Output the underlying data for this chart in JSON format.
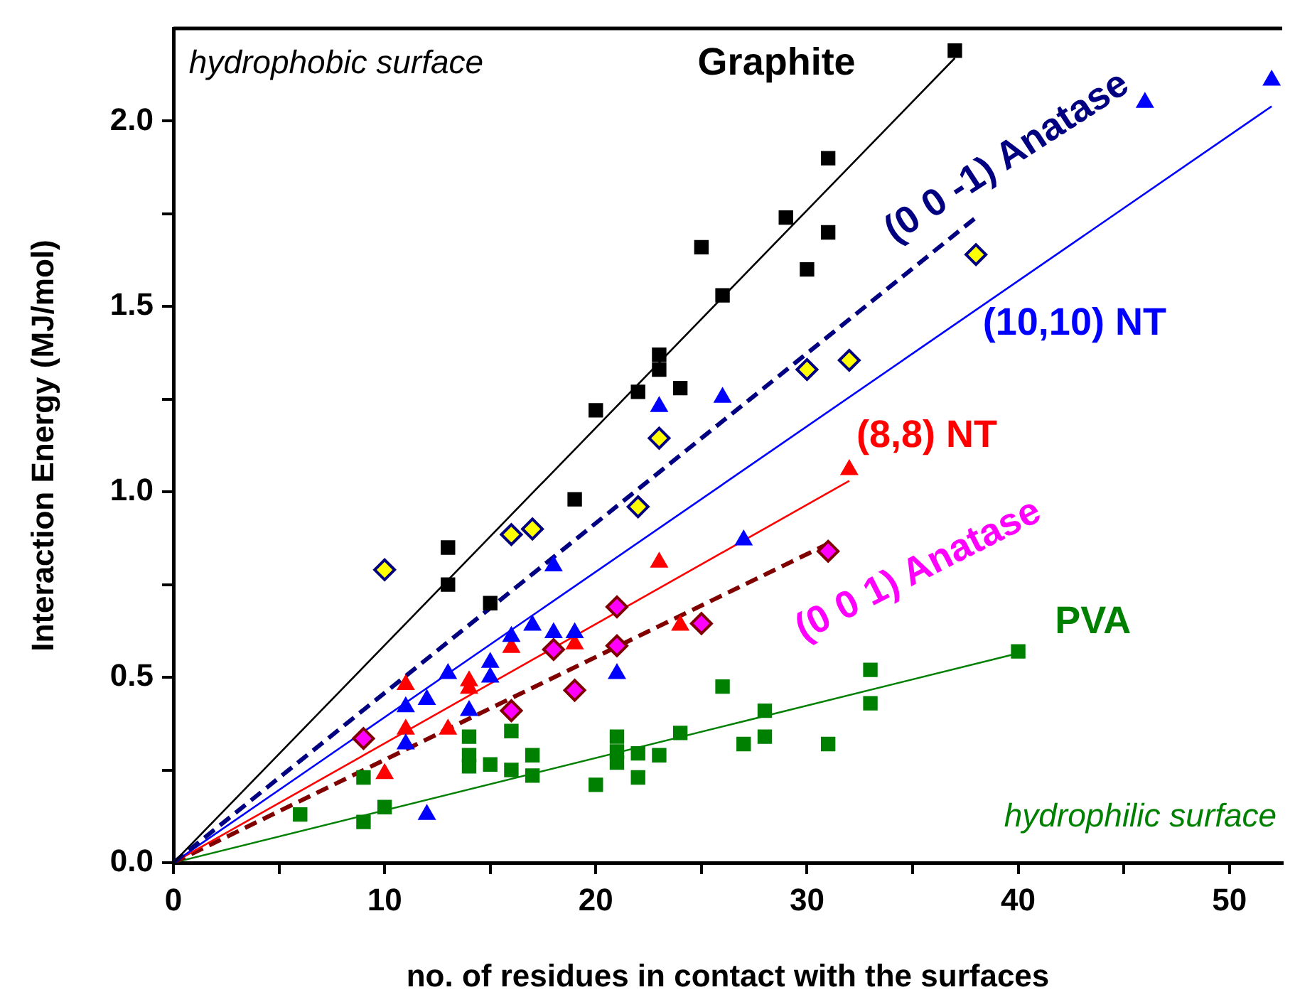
{
  "chart_data": {
    "type": "scatter",
    "xlabel": "no. of residues in contact with the surfaces",
    "ylabel": "Interaction Energy (MJ/mol)",
    "xlim": [
      0,
      52.5
    ],
    "ylim": [
      0,
      2.25
    ],
    "xticks": [
      0,
      {
        "value": 5,
        "label": null
      },
      10,
      {
        "value": 15,
        "label": null
      },
      20,
      {
        "value": 25,
        "label": null
      },
      30,
      {
        "value": 35,
        "label": null
      },
      40,
      {
        "value": 45,
        "label": null
      },
      50
    ],
    "yticks": [
      {
        "value": 0,
        "label": "0.0"
      },
      {
        "value": 0.25,
        "label": null
      },
      0.5,
      {
        "value": 0.75,
        "label": null
      },
      {
        "value": 1,
        "label": "1.0"
      },
      {
        "value": 1.25,
        "label": null
      },
      1.5,
      {
        "value": 1.75,
        "label": null
      },
      {
        "value": 2,
        "label": "2.0"
      }
    ],
    "grid": false,
    "legend": false,
    "annotations": [
      "hydrophobic surface",
      "hydrophilic surface"
    ],
    "series": [
      {
        "name": "Graphite",
        "type": "scatter",
        "marker": "square",
        "color": "#000000",
        "x": [
          13,
          13,
          15,
          19,
          20,
          22,
          23,
          23,
          24,
          25,
          26,
          29,
          30,
          31,
          31,
          37
        ],
        "values": [
          0.85,
          0.75,
          0.7,
          0.98,
          1.22,
          1.27,
          1.37,
          1.33,
          1.28,
          1.66,
          1.53,
          1.74,
          1.6,
          1.9,
          1.7,
          2.19
        ]
      },
      {
        "type": "line",
        "marker": "none",
        "line_style": "solid",
        "color": "#000000",
        "x": [
          0,
          37
        ],
        "values": [
          0,
          2.17
        ]
      },
      {
        "name": "(0 0 -1) Anatase",
        "type": "scatter",
        "marker": "diamond",
        "color": "#ffff00",
        "x": [
          10,
          16,
          17,
          22,
          23,
          30,
          32,
          38
        ],
        "values": [
          0.79,
          0.885,
          0.9,
          0.96,
          1.145,
          1.33,
          1.355,
          1.64
        ]
      },
      {
        "type": "line",
        "marker": "none",
        "line_style": "dashed",
        "color": "#000080",
        "x": [
          0,
          38
        ],
        "values": [
          0,
          1.74
        ]
      },
      {
        "name": "(10,10) NT",
        "type": "scatter",
        "marker": "triangle",
        "color": "#0000ff",
        "x": [
          11,
          11,
          12,
          12,
          13,
          14,
          15,
          15,
          16,
          17,
          18,
          18,
          19,
          21,
          23,
          26,
          27,
          46,
          52
        ],
        "values": [
          0.42,
          0.32,
          0.44,
          0.13,
          0.51,
          0.41,
          0.54,
          0.5,
          0.61,
          0.64,
          0.8,
          0.62,
          0.62,
          0.51,
          1.23,
          1.255,
          0.87,
          2.05,
          2.11
        ]
      },
      {
        "type": "line",
        "marker": "none",
        "line_style": "solid",
        "color": "#0000ff",
        "x": [
          0,
          52
        ],
        "values": [
          0,
          2.04
        ]
      },
      {
        "name": "(8,8) NT",
        "type": "scatter",
        "marker": "triangle",
        "color": "#ff0000",
        "x": [
          10,
          11,
          11,
          13,
          14,
          14,
          16,
          19,
          23,
          24,
          32
        ],
        "values": [
          0.24,
          0.48,
          0.36,
          0.36,
          0.49,
          0.47,
          0.58,
          0.59,
          0.81,
          0.64,
          1.06
        ]
      },
      {
        "type": "line",
        "marker": "none",
        "line_style": "solid",
        "color": "#ff0000",
        "x": [
          0,
          32
        ],
        "values": [
          0,
          1.03
        ]
      },
      {
        "name": "(0 0 1) Anatase",
        "type": "scatter",
        "marker": "diamond",
        "color": "#ff00ff",
        "x": [
          9,
          16,
          18,
          19,
          21,
          21,
          25,
          31
        ],
        "values": [
          0.335,
          0.41,
          0.575,
          0.465,
          0.69,
          0.585,
          0.645,
          0.84
        ]
      },
      {
        "type": "line",
        "marker": "none",
        "line_style": "dashed",
        "color": "#800000",
        "x": [
          0,
          31
        ],
        "values": [
          0,
          0.86
        ]
      },
      {
        "name": "PVA",
        "type": "scatter",
        "marker": "square",
        "color": "#008000",
        "x": [
          6,
          9,
          9,
          10,
          14,
          14,
          14,
          15,
          16,
          16,
          17,
          17,
          20,
          21,
          21,
          21,
          22,
          22,
          23,
          24,
          26,
          27,
          28,
          28,
          31,
          33,
          33,
          40
        ],
        "values": [
          0.13,
          0.11,
          0.23,
          0.15,
          0.34,
          0.29,
          0.26,
          0.265,
          0.355,
          0.25,
          0.29,
          0.235,
          0.21,
          0.34,
          0.3,
          0.27,
          0.295,
          0.23,
          0.29,
          0.35,
          0.475,
          0.32,
          0.41,
          0.34,
          0.32,
          0.52,
          0.43,
          0.57
        ]
      },
      {
        "type": "line",
        "marker": "none",
        "line_style": "solid",
        "color": "#008000",
        "x": [
          0,
          40
        ],
        "values": [
          0,
          0.565
        ]
      }
    ]
  }
}
